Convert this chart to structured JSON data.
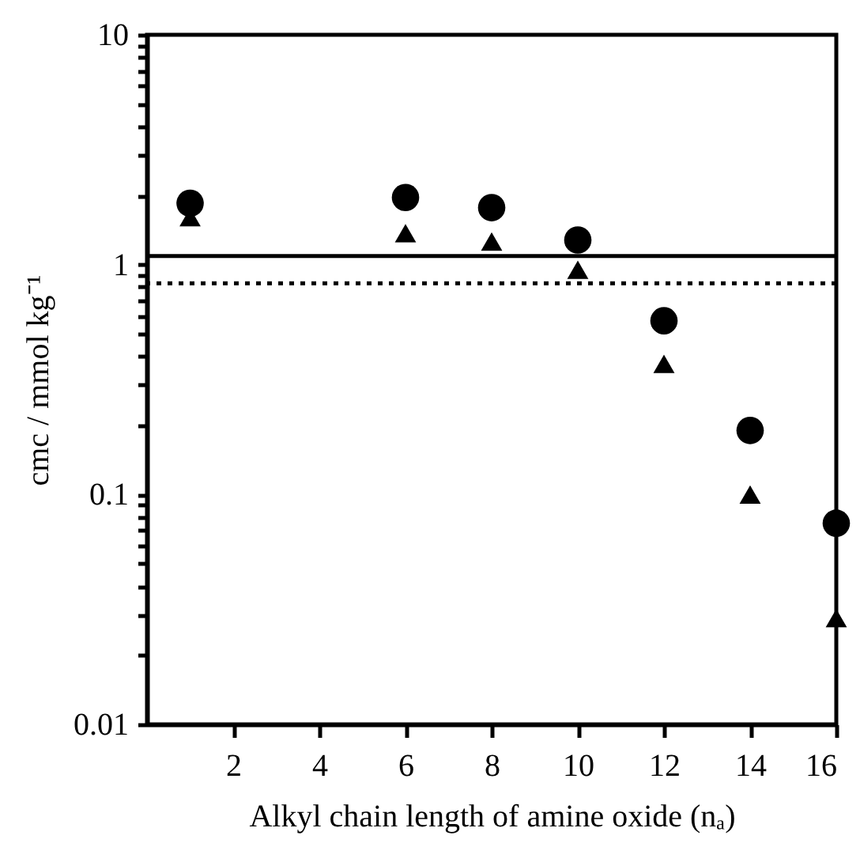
{
  "chart_data": {
    "type": "scatter",
    "xlabel": "Alkyl chain length of amine oxide (nₐ)",
    "ylabel": "cmc / mmol kg⁻¹",
    "x": [
      1,
      6,
      8,
      10,
      12,
      14,
      16
    ],
    "series": [
      {
        "color": "#000000",
        "marker": "circle",
        "values": [
          1.85,
          1.96,
          1.77,
          1.28,
          0.57,
          0.19,
          0.075
        ]
      },
      {
        "color": "#000000",
        "marker": "triangle",
        "values": [
          1.61,
          1.37,
          1.26,
          0.95,
          0.37,
          0.1,
          0.029
        ]
      }
    ],
    "xlim": [
      0,
      16
    ],
    "xticks": [
      2,
      4,
      6,
      8,
      10,
      12,
      14,
      16
    ],
    "ylim": [
      0.01,
      10
    ],
    "log": true,
    "yticks": [
      0.01,
      {
        "value": 0.02,
        "label": null
      },
      {
        "value": 0.03,
        "label": null
      },
      {
        "value": 0.04,
        "label": null
      },
      {
        "value": 0.05,
        "label": null
      },
      {
        "value": 0.06,
        "label": null
      },
      {
        "value": 0.07,
        "label": null
      },
      {
        "value": 0.08,
        "label": null
      },
      {
        "value": 0.09,
        "label": null
      },
      0.1,
      {
        "value": 0.2,
        "label": null
      },
      {
        "value": 0.3,
        "label": null
      },
      {
        "value": 0.4,
        "label": null
      },
      {
        "value": 0.5,
        "label": null
      },
      {
        "value": 0.6,
        "label": null
      },
      {
        "value": 0.7,
        "label": null
      },
      {
        "value": 0.8,
        "label": null
      },
      {
        "value": 0.9,
        "label": null
      },
      1,
      {
        "value": 2,
        "label": null
      },
      {
        "value": 3,
        "label": null
      },
      {
        "value": 4,
        "label": null
      },
      {
        "value": 5,
        "label": null
      },
      {
        "value": 6,
        "label": null
      },
      {
        "value": 7,
        "label": null
      },
      {
        "value": 8,
        "label": null
      },
      {
        "value": 9,
        "label": null
      },
      10
    ],
    "ref_lines": [
      {
        "axis": "y",
        "value": 1.09,
        "color": "#000000",
        "line_style": "solid"
      },
      {
        "axis": "y",
        "value": 0.83,
        "color": "#000000",
        "line_style": "dotted"
      }
    ],
    "grid": false
  }
}
